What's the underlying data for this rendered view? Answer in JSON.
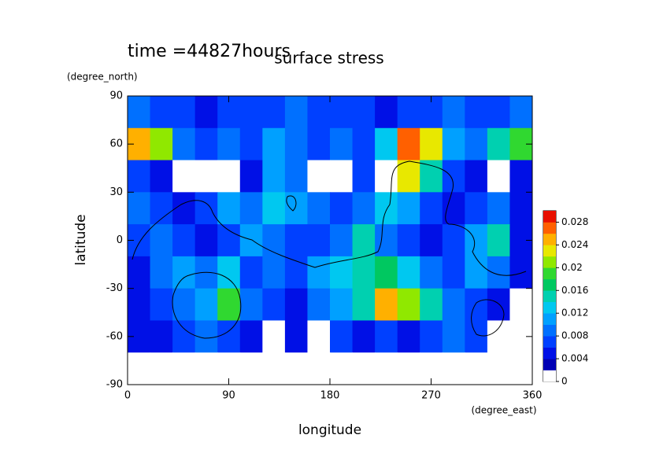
{
  "chart_data": {
    "type": "contourf",
    "title": "surface stress",
    "subtitle": "time =44827hours",
    "x_label": "longitude",
    "x_unit": "(degree_east)",
    "y_label": "latitude",
    "y_unit": "(degree_north)",
    "xlim": [
      0,
      360
    ],
    "xticks": [
      0,
      90,
      180,
      270,
      360
    ],
    "ylim": [
      -90,
      90
    ],
    "yticks": [
      -90,
      -60,
      -30,
      0,
      30,
      60,
      90
    ],
    "x": [
      10,
      30,
      50,
      70,
      90,
      110,
      130,
      150,
      170,
      190,
      210,
      230,
      250,
      270,
      290,
      310,
      330,
      350
    ],
    "y": [
      80,
      60,
      40,
      20,
      0,
      -20,
      -40,
      -60,
      -80
    ],
    "z": [
      [
        0.008,
        0.006,
        0.006,
        0.004,
        0.006,
        0.006,
        0.006,
        0.008,
        0.006,
        0.006,
        0.006,
        0.004,
        0.006,
        0.006,
        0.008,
        0.006,
        0.006,
        0.008
      ],
      [
        0.024,
        0.02,
        0.008,
        0.006,
        0.008,
        0.006,
        0.01,
        0.008,
        0.006,
        0.008,
        0.006,
        0.012,
        0.026,
        0.022,
        0.01,
        0.008,
        0.014,
        0.018
      ],
      [
        0.006,
        0.004,
        0.001,
        0.001,
        0.001,
        0.004,
        0.01,
        0.008,
        0.001,
        0.001,
        0.006,
        0.001,
        0.022,
        0.014,
        0.006,
        0.004,
        0.001,
        0.004
      ],
      [
        0.008,
        0.006,
        0.004,
        0.006,
        0.01,
        0.008,
        0.012,
        0.01,
        0.008,
        0.006,
        0.008,
        0.012,
        0.01,
        0.006,
        0.004,
        0.006,
        0.008,
        0.004
      ],
      [
        0.006,
        0.008,
        0.006,
        0.004,
        0.006,
        0.01,
        0.008,
        0.006,
        0.006,
        0.008,
        0.014,
        0.008,
        0.006,
        0.004,
        0.006,
        0.01,
        0.014,
        0.004
      ],
      [
        0.004,
        0.008,
        0.01,
        0.008,
        0.012,
        0.006,
        0.008,
        0.006,
        0.01,
        0.012,
        0.014,
        0.016,
        0.012,
        0.008,
        0.006,
        0.01,
        0.008,
        0.004
      ],
      [
        0.004,
        0.006,
        0.008,
        0.01,
        0.018,
        0.008,
        0.006,
        0.004,
        0.008,
        0.01,
        0.014,
        0.024,
        0.02,
        0.014,
        0.008,
        0.006,
        0.004,
        0.001
      ],
      [
        0.004,
        0.004,
        0.006,
        0.008,
        0.006,
        0.004,
        0.001,
        0.004,
        0.001,
        0.006,
        0.004,
        0.006,
        0.004,
        0.006,
        0.008,
        0.006,
        0.001,
        0.001
      ],
      [
        0,
        0,
        0,
        0,
        0,
        0,
        0,
        0,
        0,
        0,
        0,
        0,
        0,
        0,
        0,
        0,
        0,
        0
      ]
    ],
    "colorbar": {
      "levels": [
        0,
        0.002,
        0.004,
        0.006,
        0.008,
        0.01,
        0.012,
        0.014,
        0.016,
        0.018,
        0.02,
        0.022,
        0.024,
        0.026,
        0.028
      ],
      "colors": [
        "#ffffff",
        "#0000b4",
        "#0010e6",
        "#0040ff",
        "#0070ff",
        "#00a0ff",
        "#00c8f0",
        "#00d0b0",
        "#00c860",
        "#30d830",
        "#90e800",
        "#e8e800",
        "#ffb000",
        "#ff6000",
        "#e81000"
      ],
      "ticks": [
        0,
        0.004,
        0.008,
        0.012,
        0.016,
        0.02,
        0.024,
        0.028
      ]
    }
  }
}
